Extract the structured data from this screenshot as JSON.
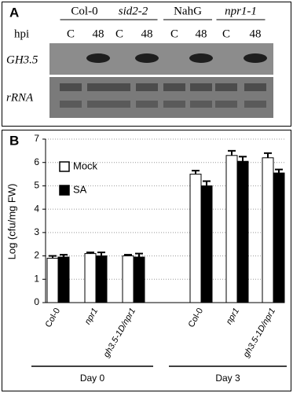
{
  "panel_a": {
    "label": "A",
    "genotypes": [
      "Col-0",
      "sid2-2",
      "NahG",
      "npr1-1"
    ],
    "time_label": "hpi",
    "lanes": [
      "C",
      "48",
      "C",
      "48",
      "C",
      "48",
      "C",
      "48"
    ],
    "rows": [
      "GH3.5",
      "rRNA"
    ]
  },
  "chart_data": {
    "type": "bar",
    "panel_label": "B",
    "y_label": "Log (cfu/mg FW)",
    "categories": [
      "Col-0",
      "npr1",
      "gh3.5-1D/npr1",
      "Col-0",
      "npr1",
      "gh3.5-1D/npr1"
    ],
    "groups": [
      "Day 0",
      "Day 3"
    ],
    "series": [
      {
        "name": "Mock",
        "color": "#ffffff",
        "values": [
          1.9,
          2.1,
          2.0,
          5.5,
          6.3,
          6.2
        ],
        "errors": [
          0.1,
          0.05,
          0.05,
          0.15,
          0.2,
          0.2
        ]
      },
      {
        "name": "SA",
        "color": "#000000",
        "values": [
          1.95,
          2.0,
          1.95,
          5.0,
          6.05,
          5.55
        ],
        "errors": [
          0.1,
          0.15,
          0.15,
          0.2,
          0.2,
          0.15
        ]
      }
    ],
    "ylim": [
      0,
      7
    ],
    "yticks": [
      0,
      1,
      2,
      3,
      4,
      5,
      6,
      7
    ],
    "grid": true
  }
}
